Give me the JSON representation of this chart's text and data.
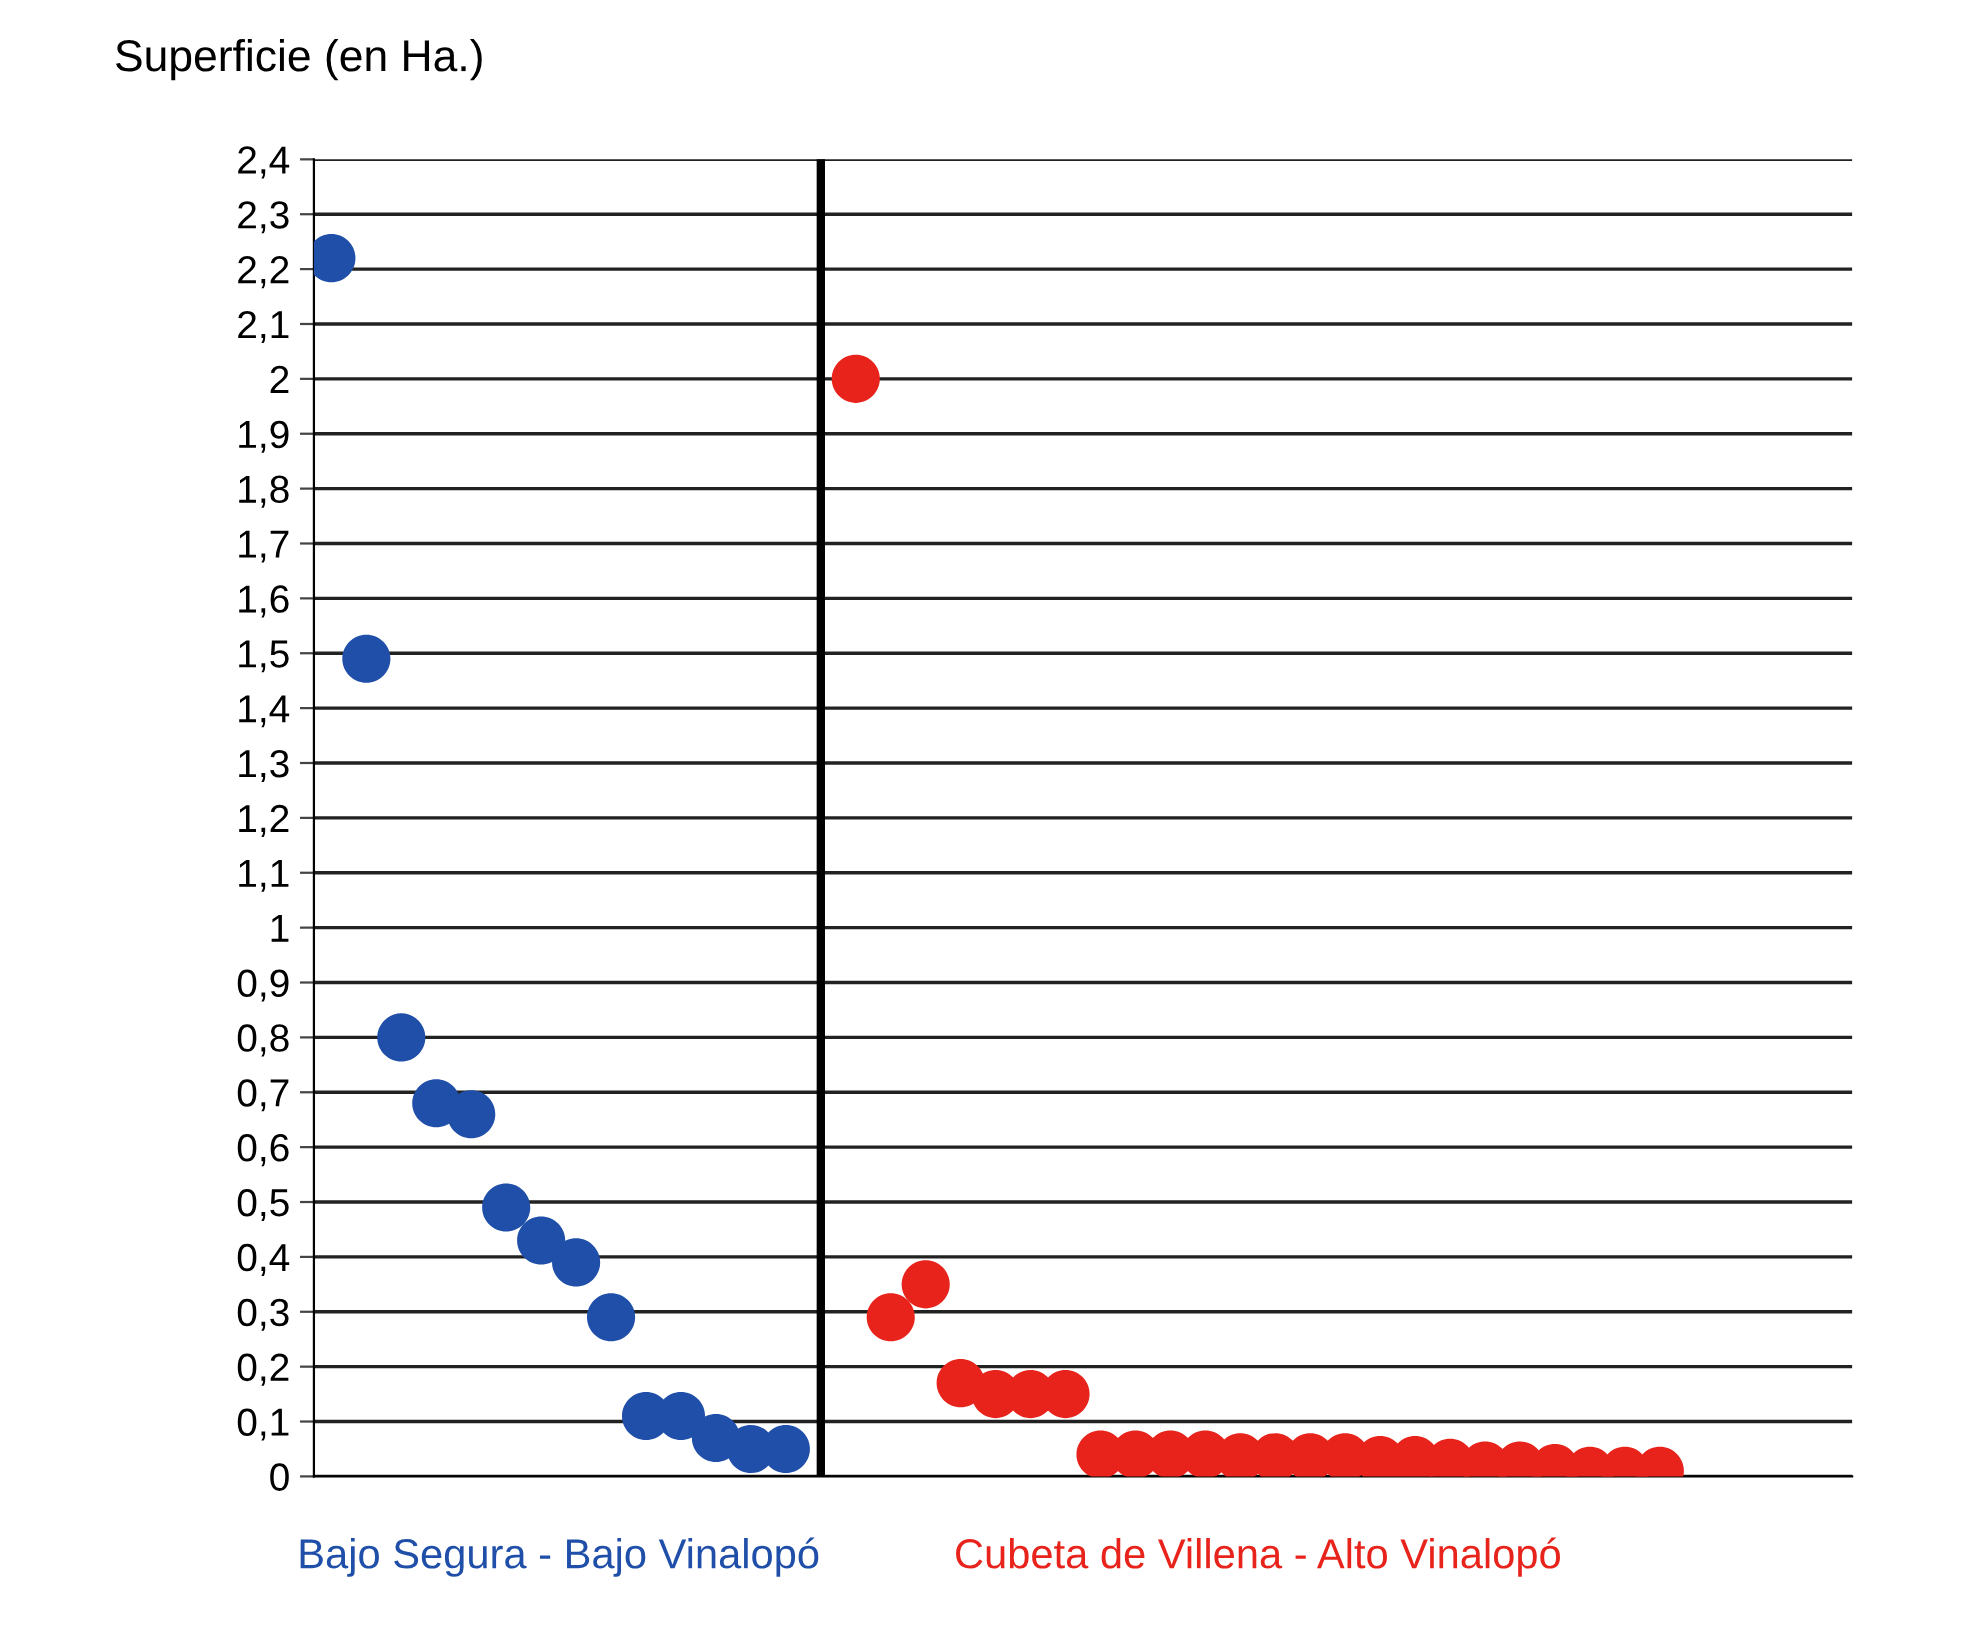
{
  "chart_data": {
    "type": "scatter",
    "ylabel": "Superficie (en Ha.)",
    "categories": [
      null,
      null,
      null,
      null,
      null,
      null,
      null,
      null,
      null,
      null,
      null,
      null,
      null,
      null,
      null,
      null,
      null,
      null,
      null,
      null,
      null,
      null,
      null,
      null,
      null,
      null,
      null,
      null,
      null,
      null,
      null,
      null,
      null,
      null,
      null,
      null,
      null,
      null,
      null,
      null,
      null,
      null,
      null,
      null
    ],
    "ylim": [
      0,
      2.4
    ],
    "yticks": [
      {
        "value": 0,
        "label": "0"
      },
      {
        "value": 0.1,
        "label": "0,1"
      },
      {
        "value": 0.2,
        "label": "0,2"
      },
      {
        "value": 0.3,
        "label": "0,3"
      },
      {
        "value": 0.4,
        "label": "0,4"
      },
      {
        "value": 0.5,
        "label": "0,5"
      },
      {
        "value": 0.6,
        "label": "0,6"
      },
      {
        "value": 0.7,
        "label": "0,7"
      },
      {
        "value": 0.8,
        "label": "0,8"
      },
      {
        "value": 0.9,
        "label": "0,9"
      },
      {
        "value": 1,
        "label": "1"
      },
      {
        "value": 1.1,
        "label": "1,1"
      },
      {
        "value": 1.2,
        "label": "1,2"
      },
      {
        "value": 1.3,
        "label": "1,3"
      },
      {
        "value": 1.4,
        "label": "1,4"
      },
      {
        "value": 1.5,
        "label": "1,5"
      },
      {
        "value": 1.6,
        "label": "1,6"
      },
      {
        "value": 1.7,
        "label": "1,7"
      },
      {
        "value": 1.8,
        "label": "1,8"
      },
      {
        "value": 1.9,
        "label": "1,9"
      },
      {
        "value": 2,
        "label": "2"
      },
      {
        "value": 2.1,
        "label": "2,1"
      },
      {
        "value": 2.2,
        "label": "2,2"
      },
      {
        "value": 2.3,
        "label": "2,3"
      },
      {
        "value": 2.4,
        "label": "2,4"
      }
    ],
    "grid": "y",
    "marker": "circle",
    "tick_labels": "y",
    "ref_lines": [
      {
        "axis": "x",
        "color": "#000000"
      }
    ],
    "series": [
      {
        "name": "Bajo Segura - Bajo Vinalopó",
        "color": "#1f4fa8",
        "values": [
          2.22,
          1.49,
          0.8,
          0.68,
          0.66,
          0.49,
          0.43,
          0.39,
          0.29,
          0.11,
          0.11,
          0.07,
          0.05,
          0.05,
          null,
          null,
          null,
          null,
          null,
          null,
          null,
          null,
          null,
          null,
          null,
          null,
          null,
          null,
          null,
          null,
          null,
          null,
          null,
          null,
          null,
          null,
          null,
          null,
          null,
          null,
          null,
          null,
          null,
          null
        ]
      },
      {
        "name": "Cubeta de Villena - Alto Vinalopó",
        "color": "#e8231b",
        "values": [
          null,
          null,
          null,
          null,
          null,
          null,
          null,
          null,
          null,
          null,
          null,
          null,
          null,
          null,
          null,
          2.0,
          0.29,
          0.35,
          0.17,
          0.15,
          0.15,
          0.15,
          0.04,
          0.04,
          0.04,
          0.04,
          0.035,
          0.035,
          0.035,
          0.035,
          0.03,
          0.03,
          0.025,
          0.02,
          0.02,
          0.015,
          0.01,
          0.01,
          0.01,
          null,
          null,
          null,
          null,
          null
        ]
      }
    ]
  }
}
